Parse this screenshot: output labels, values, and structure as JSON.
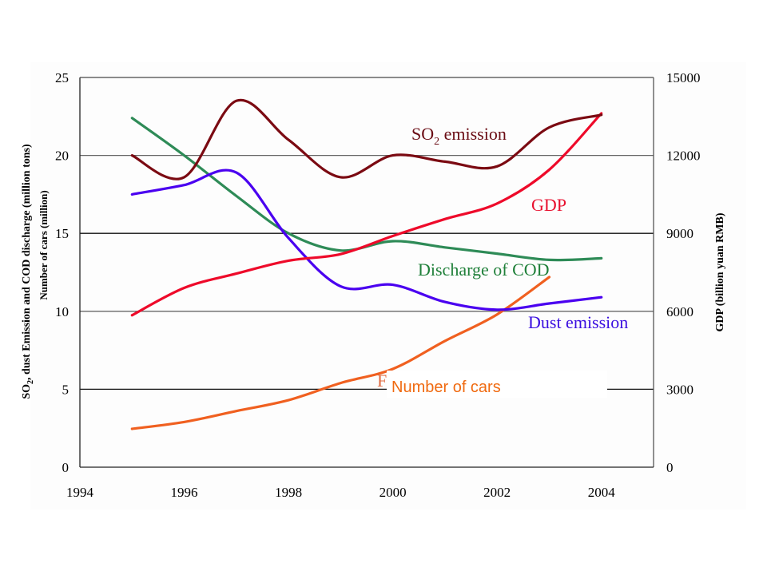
{
  "chart_data": {
    "type": "line",
    "title": "",
    "x": [
      1995,
      1996,
      1997,
      1998,
      1999,
      2000,
      2001,
      2002,
      2003,
      2004
    ],
    "xlim": [
      1994,
      2005
    ],
    "xticks": [
      "1994",
      "1996",
      "1998",
      "2000",
      "2002",
      "2004"
    ],
    "xlabel": "",
    "ylabel": "SO2, dust Emission and COD discharge (million tons)",
    "ylabel_sub": "SO",
    "ylabel_sub2": "2",
    "ylabel_rest": ", dust Emission and COD discharge (million tons)",
    "ylabel2": "Number of cars   (million)",
    "ylim": [
      0,
      25
    ],
    "yticks": [
      "0",
      "5",
      "10",
      "15",
      "20",
      "25"
    ],
    "y2label": "GDP (billion yuan RMB)",
    "y2lim": [
      0,
      15000
    ],
    "y2ticks": [
      "0",
      "3000",
      "6000",
      "9000",
      "12000",
      "15000"
    ],
    "grid": "horizontal",
    "series": [
      {
        "name": "SO2 emission",
        "axis": "left",
        "color": "#7b0a12",
        "values": [
          20.0,
          18.6,
          23.5,
          21.0,
          18.6,
          20.0,
          19.6,
          19.3,
          21.8,
          22.6
        ]
      },
      {
        "name": "GDP",
        "axis": "right",
        "color": "#ee0a2a",
        "values": [
          5850,
          6900,
          7450,
          7950,
          8200,
          8900,
          9550,
          10150,
          11450,
          13620
        ]
      },
      {
        "name": "Discharge of COD",
        "axis": "left",
        "color": "#2e8b57",
        "values": [
          22.4,
          20.0,
          17.4,
          15.0,
          13.9,
          14.5,
          14.1,
          13.7,
          13.3,
          13.4
        ]
      },
      {
        "name": "Dust emission",
        "axis": "left",
        "color": "#4a00f0",
        "values": [
          17.5,
          18.1,
          18.9,
          14.7,
          11.6,
          11.7,
          10.6,
          10.1,
          10.5,
          10.9
        ]
      },
      {
        "name": "Number of cars",
        "axis": "left",
        "color": "#f06020",
        "values": [
          2.46,
          2.9,
          3.6,
          4.3,
          5.4,
          6.3,
          8.1,
          9.8,
          12.2,
          null
        ]
      }
    ],
    "annotations": [
      {
        "text_main": "SO",
        "text_sub": "2",
        "text_rest": " emission",
        "color": "#6a0c14"
      },
      {
        "text": "GDP",
        "color": "#e8102e"
      },
      {
        "text": "Discharge of COD",
        "color": "#20803a"
      },
      {
        "text": "Dust emission",
        "color": "#3a0ee0"
      },
      {
        "text": "Number of cars",
        "color": "#f06a10"
      }
    ]
  }
}
